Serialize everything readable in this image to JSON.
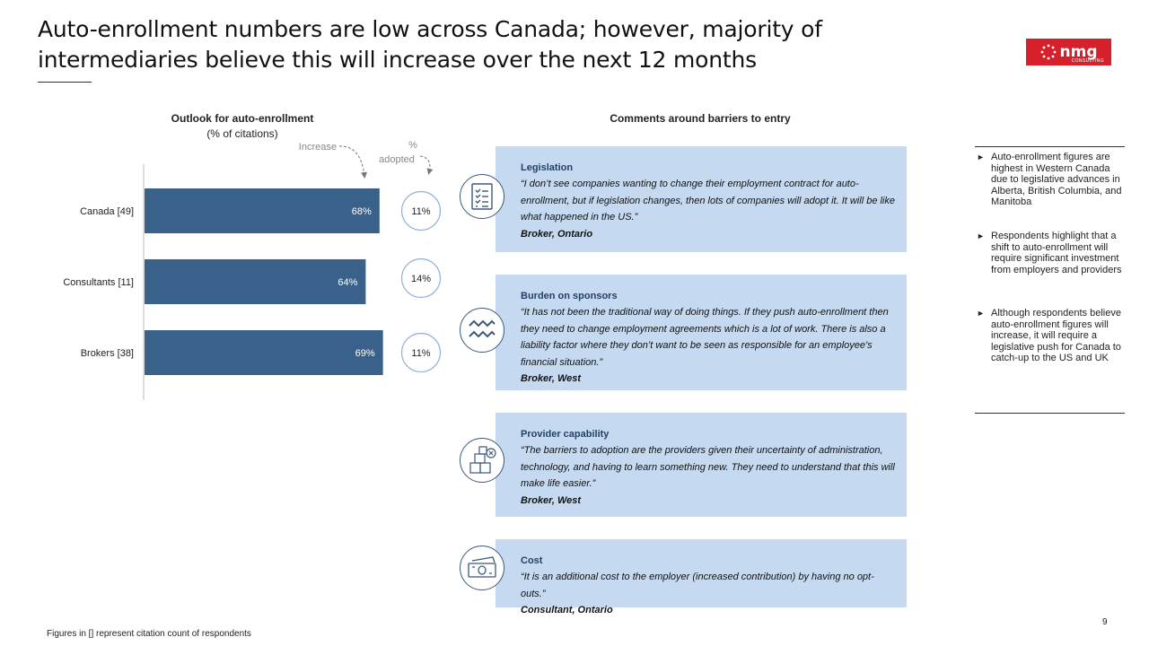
{
  "title": "Auto-enrollment numbers are low across Canada; however, majority of intermediaries believe this will increase over the next 12 months",
  "logo": {
    "name": "nmg",
    "sub": "CONSULTING"
  },
  "chart_data": {
    "type": "bar",
    "orientation": "horizontal",
    "title": "Outlook for auto-enrollment",
    "subtitle": "(% of citations)",
    "categories": [
      "Canada [49]",
      "Consultants [11]",
      "Brokers [38]"
    ],
    "series": [
      {
        "name": "Increase",
        "values": [
          68,
          64,
          69
        ],
        "labels": [
          "68%",
          "64%",
          "69%"
        ]
      },
      {
        "name": "% adopted",
        "values": [
          11,
          14,
          11
        ],
        "labels": [
          "11%",
          "14%",
          "11%"
        ]
      }
    ],
    "xlim": [
      0,
      100
    ],
    "bar_color": "#3a6189",
    "annotations": {
      "increase": "Increase",
      "adopted_line1": "%",
      "adopted_line2": "adopted"
    }
  },
  "comments": {
    "title": "Comments around barriers to entry",
    "cards": [
      {
        "icon": "checklist-icon",
        "category": "Legislation",
        "quote": "“I don’t see companies wanting to change their employment contract for auto-enrollment, but if legislation changes, then lots of companies will adopt it. It will be like what happened in the US.”",
        "attribution": "Broker, Ontario"
      },
      {
        "icon": "waves-icon",
        "category": "Burden on sponsors",
        "quote": "“It has not been the traditional way of doing things. If they push auto-enrollment then they need to change employment agreements which is a lot of work. There is also a liability factor where they don’t want to be seen as responsible for an employee's financial situation.”",
        "attribution": "Broker, West"
      },
      {
        "icon": "boxes-icon",
        "category": "Provider capability",
        "quote": "“The barriers to adoption are the providers given their uncertainty of administration, technology, and having to learn something new. They need to understand that this will make life easier.”",
        "attribution": "Broker, West"
      },
      {
        "icon": "banknotes-icon",
        "category": "Cost",
        "quote": "“It is an additional cost to the employer (increased contribution) by having no opt-outs.”",
        "attribution": "Consultant, Ontario"
      }
    ]
  },
  "bullets": [
    "Auto-enrollment figures are highest in Western Canada due to legislative advances in Alberta, British Columbia, and Manitoba",
    "Respondents highlight that a shift to auto-enrollment will require significant investment from employers and providers",
    "Although respondents believe auto-enrollment figures will increase, it will require a legislative push for Canada to catch-up to the US and UK"
  ],
  "bullet_marker": "►",
  "footnote": "Figures in [] represent citation count of respondents",
  "page_number": "9"
}
